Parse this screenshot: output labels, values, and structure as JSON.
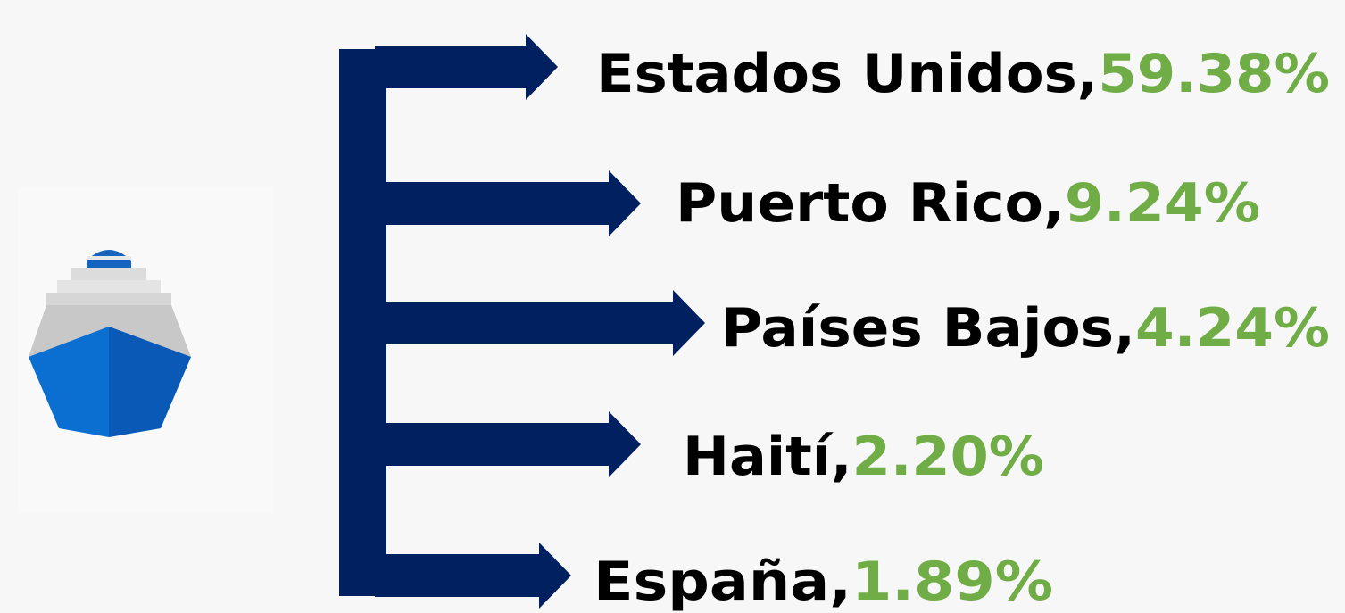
{
  "separator": ",",
  "items": [
    {
      "name": "Estados Unidos",
      "share": "59.38%"
    },
    {
      "name": "Puerto Rico",
      "share": "9.24%"
    },
    {
      "name": "Países Bajos",
      "share": "4.24%"
    },
    {
      "name": "Haití",
      "share": "2.20%"
    },
    {
      "name": "España",
      "share": "1.89%"
    }
  ]
}
